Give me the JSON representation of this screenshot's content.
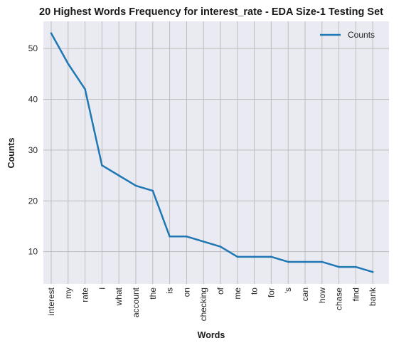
{
  "chart_data": {
    "type": "line",
    "title": "20 Highest Words Frequency for interest_rate - EDA Size-1 Testing Set",
    "xlabel": "Words",
    "ylabel": "Counts",
    "categories": [
      "interest",
      "my",
      "rate",
      "i",
      "what",
      "account",
      "the",
      "is",
      "on",
      "checking",
      "of",
      "me",
      "to",
      "for",
      "'s",
      "can",
      "how",
      "chase",
      "find",
      "bank"
    ],
    "series": [
      {
        "name": "Counts",
        "values": [
          53,
          47,
          42,
          27,
          25,
          23,
          22,
          13,
          13,
          12,
          11,
          9,
          9,
          9,
          8,
          8,
          8,
          7,
          7,
          6
        ],
        "color": "#1f77b4"
      }
    ],
    "ylim": [
      3.65,
      55.35
    ],
    "yticks": [
      10,
      20,
      30,
      40,
      50
    ],
    "grid": true,
    "legend": "top-right",
    "background": "#eaeaf2",
    "grid_color": "#bdbdbd"
  }
}
